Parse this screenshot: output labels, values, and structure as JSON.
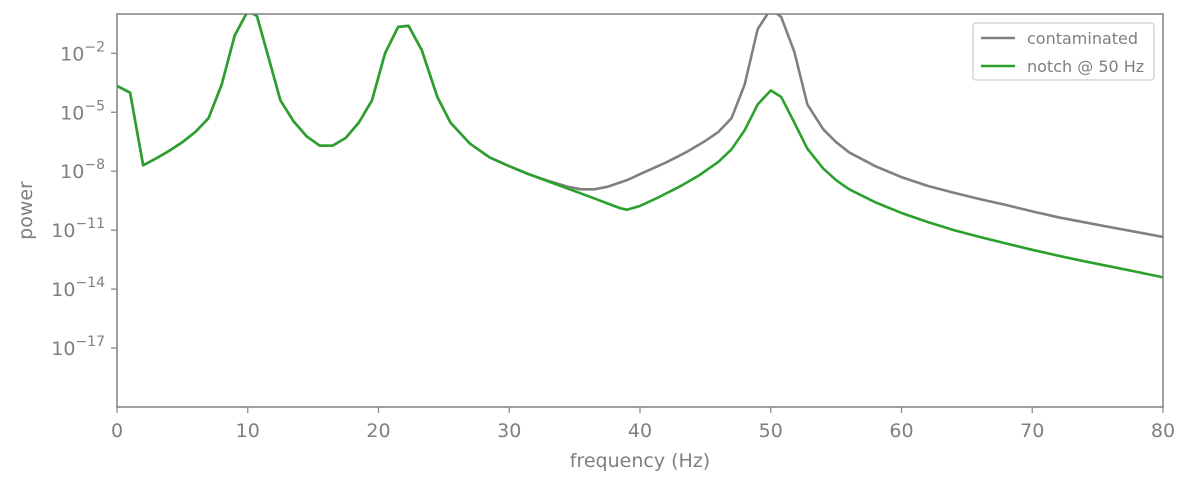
{
  "chart_data": {
    "type": "line",
    "xlabel": "frequency (Hz)",
    "ylabel": "power",
    "x_scale": "linear",
    "y_scale": "log",
    "xlim": [
      0,
      80
    ],
    "ylim": [
      1e-20,
      1.0
    ],
    "x_ticks": [
      0,
      10,
      20,
      30,
      40,
      50,
      60,
      70,
      80
    ],
    "y_ticks": [
      {
        "base": "10",
        "exp": "−2",
        "value": 0.01
      },
      {
        "base": "10",
        "exp": "−5",
        "value": 1e-05
      },
      {
        "base": "10",
        "exp": "−8",
        "value": 1e-08
      },
      {
        "base": "10",
        "exp": "−11",
        "value": 1e-11
      },
      {
        "base": "10",
        "exp": "−14",
        "value": 1e-14
      },
      {
        "base": "10",
        "exp": "−17",
        "value": 1e-17
      }
    ],
    "grid": false,
    "legend_position": "top-right",
    "series": [
      {
        "name": "contaminated",
        "color": "#808080",
        "points": [
          [
            0,
            0.00022
          ],
          [
            1,
            0.0001
          ],
          [
            2,
            2e-08
          ],
          [
            3,
            4.5e-08
          ],
          [
            4,
            1.1e-07
          ],
          [
            5,
            3e-07
          ],
          [
            6,
            1e-06
          ],
          [
            7,
            5e-06
          ],
          [
            8,
            0.00025
          ],
          [
            9,
            0.08
          ],
          [
            10,
            1.4
          ],
          [
            10.7,
            0.8
          ],
          [
            11.5,
            0.01
          ],
          [
            12.5,
            4e-05
          ],
          [
            13.5,
            3.5e-06
          ],
          [
            14.5,
            6e-07
          ],
          [
            15.5,
            2e-07
          ],
          [
            16.5,
            2e-07
          ],
          [
            17.5,
            5e-07
          ],
          [
            18.5,
            3e-06
          ],
          [
            19.5,
            4e-05
          ],
          [
            20.5,
            0.01
          ],
          [
            21.5,
            0.22
          ],
          [
            22.3,
            0.25
          ],
          [
            23.3,
            0.015
          ],
          [
            24.5,
            6e-05
          ],
          [
            25.5,
            3e-06
          ],
          [
            27,
            2.5e-07
          ],
          [
            28.5,
            5e-08
          ],
          [
            30,
            1.8e-08
          ],
          [
            31.5,
            7e-09
          ],
          [
            33,
            3.2e-09
          ],
          [
            34.5,
            1.6e-09
          ],
          [
            35.5,
            1.2e-09
          ],
          [
            36.5,
            1.2e-09
          ],
          [
            37.5,
            1.6e-09
          ],
          [
            39,
            3.5e-09
          ],
          [
            40.5,
            1e-08
          ],
          [
            42,
            2.8e-08
          ],
          [
            43.5,
            9e-08
          ],
          [
            45,
            3.5e-07
          ],
          [
            46,
            1e-06
          ],
          [
            47,
            5e-06
          ],
          [
            48,
            0.00025
          ],
          [
            49,
            0.17
          ],
          [
            50,
            1.8
          ],
          [
            50.8,
            0.7
          ],
          [
            51.8,
            0.012
          ],
          [
            52.8,
            2.5e-05
          ],
          [
            54,
            1.4e-06
          ],
          [
            55,
            3e-07
          ],
          [
            56,
            9e-08
          ],
          [
            58,
            1.8e-08
          ],
          [
            60,
            5e-09
          ],
          [
            62,
            1.8e-09
          ],
          [
            64,
            8e-10
          ],
          [
            66,
            3.8e-10
          ],
          [
            68,
            1.9e-10
          ],
          [
            70,
            9e-11
          ],
          [
            72,
            4.5e-11
          ],
          [
            74,
            2.5e-11
          ],
          [
            76,
            1.4e-11
          ],
          [
            78,
            8e-12
          ],
          [
            80,
            4.5e-12
          ]
        ]
      },
      {
        "name": "notch @ 50 Hz",
        "color": "#2ca02c",
        "points": [
          [
            0,
            0.00022
          ],
          [
            1,
            0.0001
          ],
          [
            2,
            2e-08
          ],
          [
            3,
            4.5e-08
          ],
          [
            4,
            1.1e-07
          ],
          [
            5,
            3e-07
          ],
          [
            6,
            1e-06
          ],
          [
            7,
            5e-06
          ],
          [
            8,
            0.00025
          ],
          [
            9,
            0.08
          ],
          [
            10,
            1.4
          ],
          [
            10.7,
            0.8
          ],
          [
            11.5,
            0.01
          ],
          [
            12.5,
            4e-05
          ],
          [
            13.5,
            3.5e-06
          ],
          [
            14.5,
            6e-07
          ],
          [
            15.5,
            2e-07
          ],
          [
            16.5,
            2e-07
          ],
          [
            17.5,
            5e-07
          ],
          [
            18.5,
            3e-06
          ],
          [
            19.5,
            4e-05
          ],
          [
            20.5,
            0.01
          ],
          [
            21.5,
            0.22
          ],
          [
            22.3,
            0.25
          ],
          [
            23.3,
            0.015
          ],
          [
            24.5,
            6e-05
          ],
          [
            25.5,
            3e-06
          ],
          [
            27,
            2.5e-07
          ],
          [
            28.5,
            5e-08
          ],
          [
            30,
            1.8e-08
          ],
          [
            31.5,
            7e-09
          ],
          [
            33,
            3e-09
          ],
          [
            34.5,
            1.3e-09
          ],
          [
            36,
            5.5e-10
          ],
          [
            37.5,
            2.3e-10
          ],
          [
            38.5,
            1.3e-10
          ],
          [
            39,
            1.1e-10
          ],
          [
            40,
            1.7e-10
          ],
          [
            41.5,
            5e-10
          ],
          [
            43,
            1.6e-09
          ],
          [
            44.5,
            6e-09
          ],
          [
            46,
            3e-08
          ],
          [
            47,
            1.3e-07
          ],
          [
            48,
            1.2e-06
          ],
          [
            49,
            2.5e-05
          ],
          [
            50,
            0.00013
          ],
          [
            50.8,
            6e-05
          ],
          [
            51.8,
            3e-06
          ],
          [
            52.8,
            1.4e-07
          ],
          [
            54,
            1.4e-08
          ],
          [
            55,
            3.5e-09
          ],
          [
            56,
            1.2e-09
          ],
          [
            58,
            2.6e-10
          ],
          [
            60,
            7.5e-11
          ],
          [
            62,
            2.6e-11
          ],
          [
            64,
            1e-11
          ],
          [
            66,
            4.5e-12
          ],
          [
            68,
            2.1e-12
          ],
          [
            70,
            1e-12
          ],
          [
            72,
            5e-13
          ],
          [
            74,
            2.6e-13
          ],
          [
            76,
            1.4e-13
          ],
          [
            78,
            7.5e-14
          ],
          [
            80,
            4e-14
          ]
        ]
      }
    ]
  }
}
